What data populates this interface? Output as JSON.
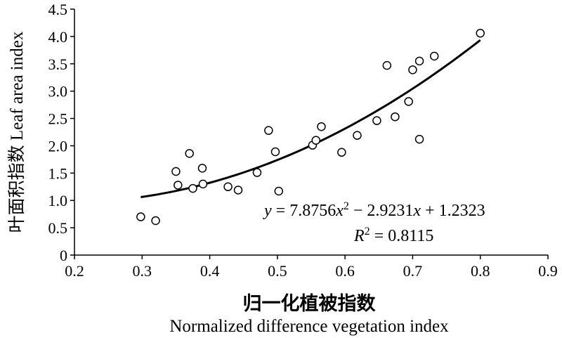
{
  "chart_data": {
    "type": "scatter",
    "title": "",
    "xlabel_cn": "归一化植被指数",
    "xlabel_en": "Normalized difference vegetation index",
    "ylabel": "叶面积指数 Leaf area index",
    "xlim": [
      0.2,
      0.9
    ],
    "ylim": [
      0,
      4.5
    ],
    "x_ticks": [
      "0.2",
      "0.3",
      "0.4",
      "0.5",
      "0.6",
      "0.7",
      "0.8",
      "0.9"
    ],
    "y_ticks": [
      "0",
      "0.5",
      "1.0",
      "1.5",
      "2.0",
      "2.5",
      "3.0",
      "3.5",
      "4.0",
      "4.5"
    ],
    "grid": false,
    "points": [
      {
        "x": 0.298,
        "y": 0.7
      },
      {
        "x": 0.32,
        "y": 0.63
      },
      {
        "x": 0.35,
        "y": 1.53
      },
      {
        "x": 0.353,
        "y": 1.28
      },
      {
        "x": 0.37,
        "y": 1.86
      },
      {
        "x": 0.375,
        "y": 1.22
      },
      {
        "x": 0.389,
        "y": 1.59
      },
      {
        "x": 0.39,
        "y": 1.3
      },
      {
        "x": 0.427,
        "y": 1.25
      },
      {
        "x": 0.442,
        "y": 1.19
      },
      {
        "x": 0.47,
        "y": 1.51
      },
      {
        "x": 0.487,
        "y": 2.28
      },
      {
        "x": 0.497,
        "y": 1.89
      },
      {
        "x": 0.502,
        "y": 1.17
      },
      {
        "x": 0.552,
        "y": 2.01
      },
      {
        "x": 0.557,
        "y": 2.1
      },
      {
        "x": 0.565,
        "y": 2.35
      },
      {
        "x": 0.595,
        "y": 1.88
      },
      {
        "x": 0.618,
        "y": 2.19
      },
      {
        "x": 0.647,
        "y": 2.46
      },
      {
        "x": 0.662,
        "y": 3.47
      },
      {
        "x": 0.674,
        "y": 2.53
      },
      {
        "x": 0.694,
        "y": 2.81
      },
      {
        "x": 0.7,
        "y": 3.39
      },
      {
        "x": 0.71,
        "y": 3.55
      },
      {
        "x": 0.71,
        "y": 2.12
      },
      {
        "x": 0.732,
        "y": 3.64
      },
      {
        "x": 0.8,
        "y": 4.06
      }
    ],
    "trendline": {
      "type": "polynomial",
      "coefficients": [
        7.8756,
        -2.9231,
        1.2323
      ],
      "x_range": [
        0.298,
        0.8
      ]
    },
    "equation": "y = 7.8756x² − 2.9231x + 1.2323",
    "r2": "R² = 0.8115"
  }
}
